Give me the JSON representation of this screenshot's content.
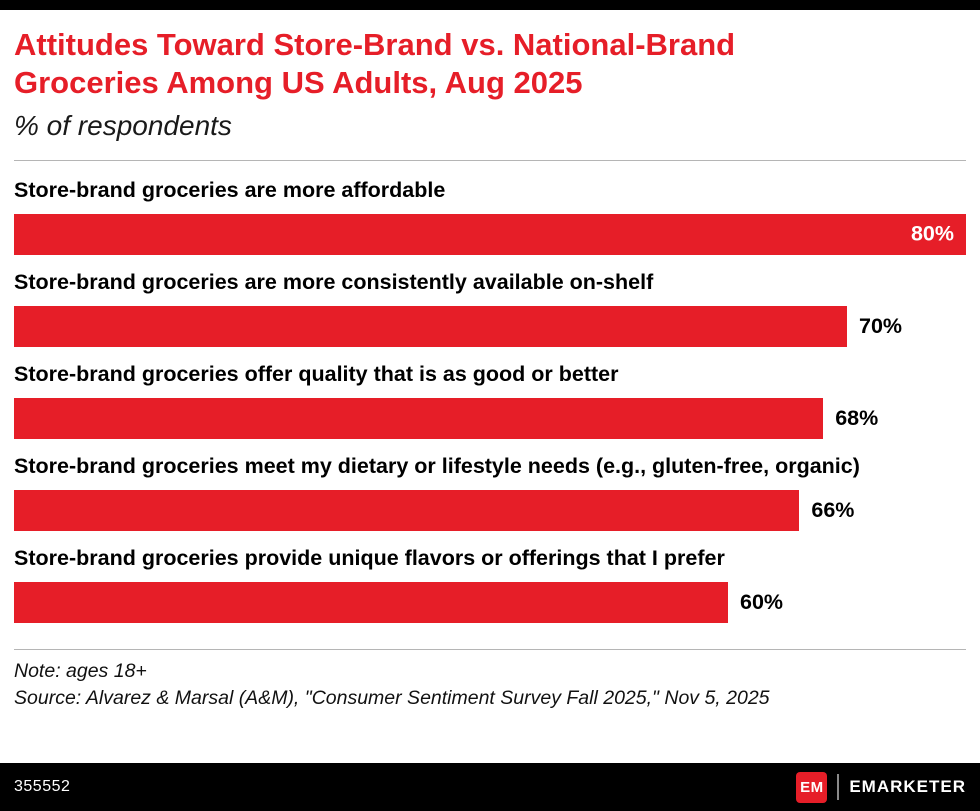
{
  "header": {
    "title_line1": "Attitudes Toward Store-Brand vs. National-Brand",
    "title_line2": "Groceries Among US Adults, Aug 2025",
    "subtitle": "% of respondents"
  },
  "chart_data": {
    "type": "bar",
    "orientation": "horizontal",
    "title": "Attitudes Toward Store-Brand vs. National-Brand Groceries Among US Adults, Aug 2025",
    "subtitle": "% of respondents",
    "categories": [
      "Store-brand groceries are more affordable",
      "Store-brand groceries are more consistently available on-shelf",
      "Store-brand groceries offer quality that is as good or better",
      "Store-brand groceries meet my dietary or lifestyle needs (e.g., gluten-free, organic)",
      "Store-brand groceries provide unique flavors or offerings that I prefer"
    ],
    "values": [
      80,
      70,
      68,
      66,
      60
    ],
    "value_labels": [
      "80%",
      "70%",
      "68%",
      "66%",
      "60%"
    ],
    "xlim": [
      0,
      80
    ],
    "bar_color": "#E61E28",
    "grid": false,
    "legend": false
  },
  "notes": {
    "note": "Note: ages 18+",
    "source": "Source: Alvarez & Marsal (A&M),  \"Consumer Sentiment Survey Fall 2025,\" Nov 5, 2025"
  },
  "footer": {
    "chart_id": "355552",
    "logo_text": "EM",
    "brand": "EMARKETER"
  },
  "colors": {
    "accent_red": "#E61E28",
    "top_bar": "#000000",
    "footer_bar": "#000000",
    "divider": "#b5b5b5"
  }
}
